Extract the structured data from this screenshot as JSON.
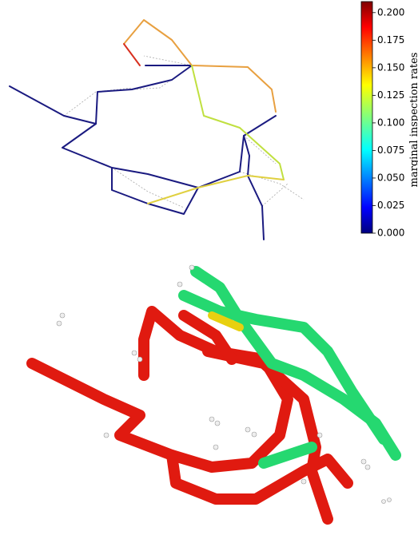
{
  "colorbar": {
    "label": "marginal inspection rates",
    "lim": [
      0,
      0.21
    ],
    "ticks": [
      {
        "value": 0,
        "label": "0.000"
      },
      {
        "value": 0.025,
        "label": "0.025"
      },
      {
        "value": 0.05,
        "label": "0.050"
      },
      {
        "value": 0.075,
        "label": "0.075"
      },
      {
        "value": 0.1,
        "label": "0.100"
      },
      {
        "value": 0.125,
        "label": "0.125"
      },
      {
        "value": 0.15,
        "label": "0.150"
      },
      {
        "value": 0.175,
        "label": "0.175"
      },
      {
        "value": 0.2,
        "label": "0.200"
      }
    ]
  }
}
